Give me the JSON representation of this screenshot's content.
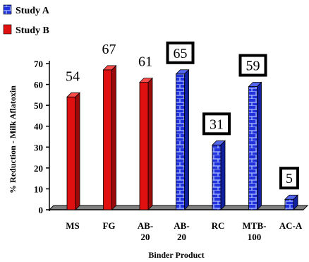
{
  "chart_data": {
    "type": "bar",
    "title": "",
    "ylabel": "% Reduction - Milk Aflatoxin",
    "xlabel": "Binder Product",
    "ylim": [
      0,
      70
    ],
    "yticks": [
      "0",
      "10",
      "20",
      "30",
      "40",
      "50",
      "60",
      "70"
    ],
    "legend_position": "top-left",
    "series": [
      {
        "name": "Study A",
        "color": "#1f2fd8",
        "pattern": "brick"
      },
      {
        "name": "Study B",
        "color": "#e01010",
        "pattern": "solid"
      }
    ],
    "bars": [
      {
        "category": [
          "MS"
        ],
        "value": 54,
        "series": "Study B",
        "label": "54",
        "boxed": false
      },
      {
        "category": [
          "FG"
        ],
        "value": 67,
        "series": "Study B",
        "label": "67",
        "boxed": false
      },
      {
        "category": [
          "AB-",
          "20"
        ],
        "value": 61,
        "series": "Study B",
        "label": "61",
        "boxed": false
      },
      {
        "category": [
          "AB-",
          "20"
        ],
        "value": 65,
        "series": "Study A",
        "label": "65",
        "boxed": true
      },
      {
        "category": [
          "RC"
        ],
        "value": 31,
        "series": "Study A",
        "label": "31",
        "boxed": true
      },
      {
        "category": [
          "MTB-",
          "100"
        ],
        "value": 59,
        "series": "Study A",
        "label": "59",
        "boxed": true
      },
      {
        "category": [
          "AC-A"
        ],
        "value": 5,
        "series": "Study A",
        "label": "5",
        "boxed": true
      }
    ]
  }
}
